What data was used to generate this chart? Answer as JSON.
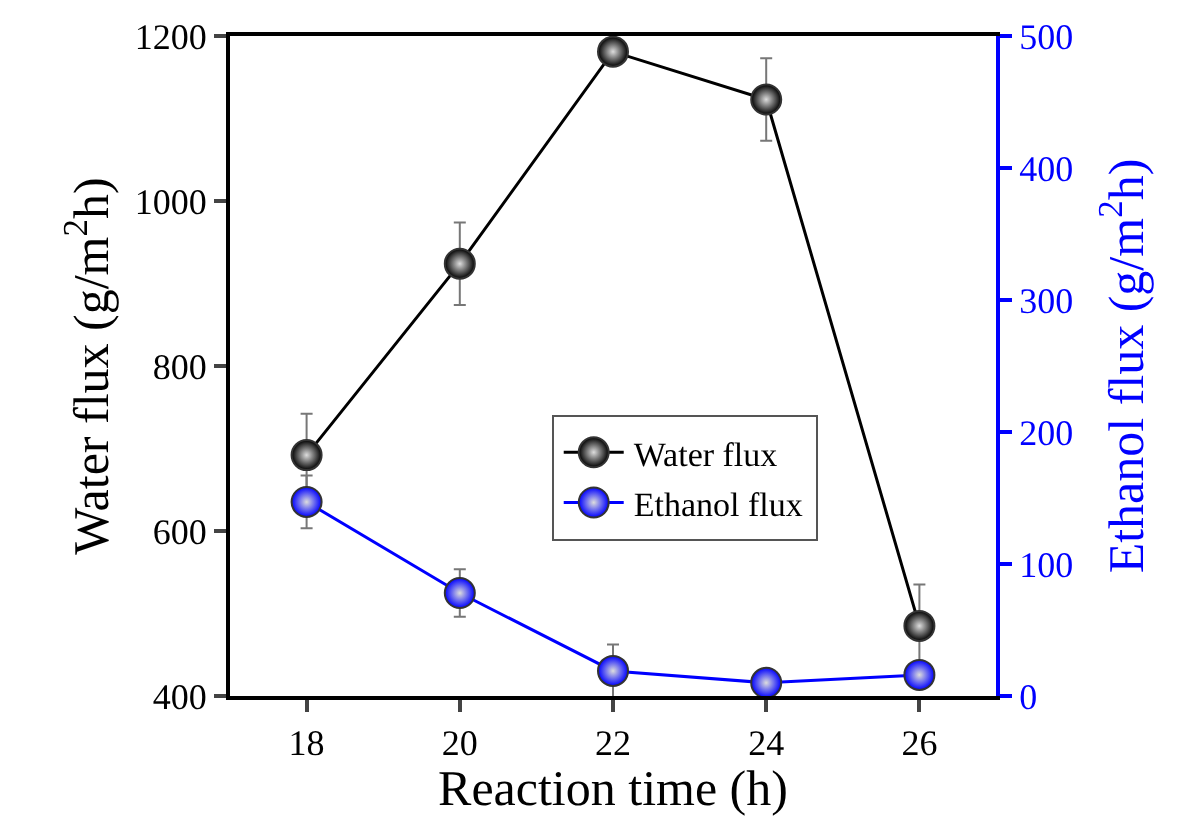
{
  "chart_data": {
    "type": "line",
    "xlabel": "Reaction time (h)",
    "ylabel": "Water flux (g/m$^{2}$h)",
    "y2label": "Ethanol flux (g/m$^{2}$h)",
    "x": [
      18,
      20,
      22,
      24,
      26
    ],
    "xlim": [
      17,
      27
    ],
    "xticks": [
      18,
      20,
      22,
      24,
      26
    ],
    "ylim": [
      400,
      1200
    ],
    "yticks": [
      400,
      600,
      800,
      1000,
      1200
    ],
    "y2lim": [
      0,
      500
    ],
    "y2ticks": [
      0,
      100,
      200,
      300,
      400,
      500
    ],
    "series": [
      {
        "name": "Water flux",
        "color": "#000000",
        "values": [
          692,
          924,
          1181,
          1123,
          485
        ],
        "errors": [
          50,
          50,
          null,
          50,
          50
        ]
      },
      {
        "name": "Ethanol flux",
        "color": "#0000ff",
        "axis": "y2",
        "values": [
          147,
          78,
          19,
          10,
          16
        ],
        "errors": [
          20,
          18,
          20,
          null,
          null
        ]
      }
    ],
    "marker": "circle",
    "line_style": "solid",
    "grid": false,
    "legend": "right"
  }
}
